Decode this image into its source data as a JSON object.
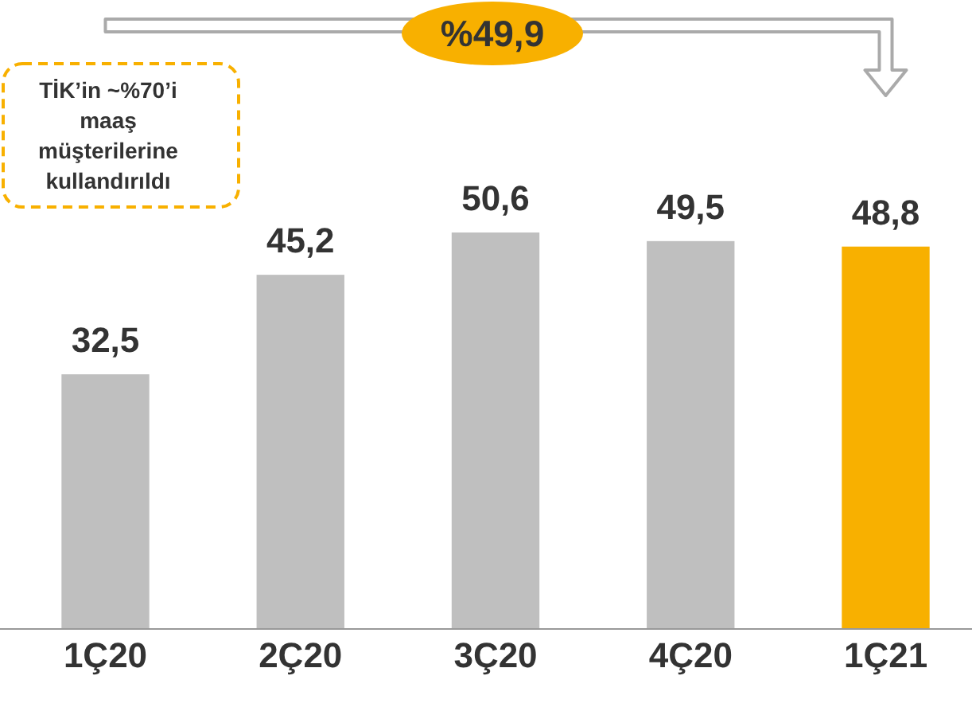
{
  "chart_data": {
    "type": "bar",
    "categories": [
      "1Ç20",
      "2Ç20",
      "3Ç20",
      "4Ç20",
      "1Ç21"
    ],
    "values": [
      32.5,
      45.2,
      50.6,
      49.5,
      48.8
    ],
    "colors": [
      "#bfbfbf",
      "#bfbfbf",
      "#bfbfbf",
      "#bfbfbf",
      "#f8b000"
    ],
    "value_labels": [
      "32,5",
      "45,2",
      "50,6",
      "49,5",
      "48,8"
    ],
    "annotations": [
      "%49,9",
      "TİK’in ~%70’i maaş müşterilerine kullandırıldı"
    ]
  }
}
